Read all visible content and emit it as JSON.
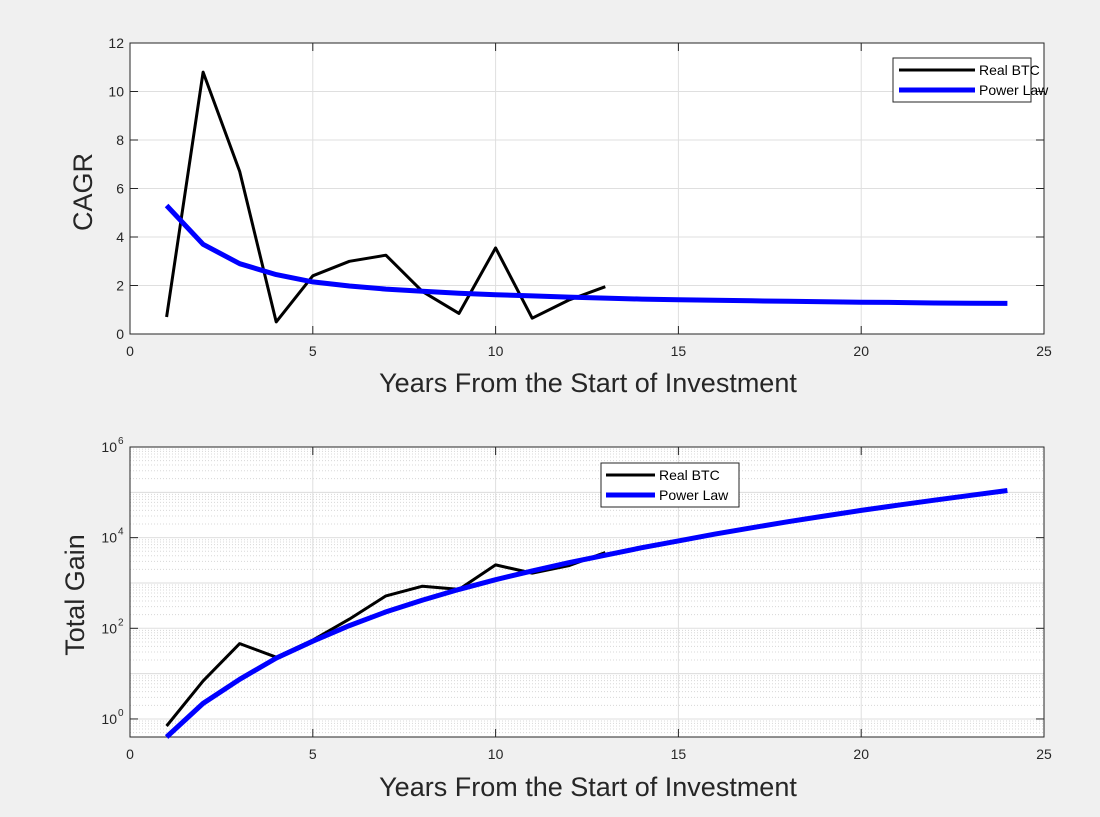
{
  "chart_data": [
    {
      "type": "line",
      "title": "",
      "xlabel": "Years From the Start of Investment",
      "ylabel": "CAGR",
      "xlim": [
        0,
        25
      ],
      "ylim": [
        0,
        12
      ],
      "xticks": [
        0,
        5,
        10,
        15,
        20,
        25
      ],
      "yticks": [
        0,
        2,
        4,
        6,
        8,
        10,
        12
      ],
      "x_tick_labels": [
        "0",
        "5",
        "10",
        "15",
        "20",
        "25"
      ],
      "y_tick_labels": [
        "0",
        "2",
        "4",
        "6",
        "8",
        "10",
        "12"
      ],
      "yscale": "linear",
      "grid": true,
      "legend": "top-right",
      "series": [
        {
          "name": "Real BTC",
          "color": "#000000",
          "x": [
            1,
            2,
            3,
            4,
            5,
            6,
            7,
            8,
            9,
            10,
            11,
            12,
            13
          ],
          "y": [
            0.7,
            10.8,
            6.7,
            0.5,
            2.4,
            3.0,
            3.25,
            1.75,
            0.85,
            3.55,
            0.65,
            1.4,
            1.95
          ]
        },
        {
          "name": "Power Law",
          "color": "#0000ff",
          "x": [
            1,
            2,
            3,
            4,
            5,
            6,
            7,
            8,
            9,
            10,
            11,
            12,
            13,
            14,
            15,
            16,
            17,
            18,
            19,
            20,
            21,
            22,
            23,
            24
          ],
          "y": [
            5.3,
            3.7,
            2.9,
            2.45,
            2.15,
            1.98,
            1.85,
            1.76,
            1.68,
            1.62,
            1.57,
            1.52,
            1.48,
            1.44,
            1.41,
            1.39,
            1.37,
            1.35,
            1.33,
            1.31,
            1.3,
            1.28,
            1.27,
            1.26
          ]
        }
      ]
    },
    {
      "type": "line",
      "title": "",
      "xlabel": "Years From the Start of Investment",
      "ylabel": "Total Gain",
      "xlim": [
        0,
        25
      ],
      "ylim": [
        0.4,
        1000000
      ],
      "xticks": [
        0,
        5,
        10,
        15,
        20,
        25
      ],
      "yticks": [
        1,
        100,
        10000,
        1000000
      ],
      "x_tick_labels": [
        "0",
        "5",
        "10",
        "15",
        "20",
        "25"
      ],
      "y_tick_labels": [
        "10",
        "10",
        "10",
        "10"
      ],
      "y_tick_exponents": [
        "0",
        "2",
        "4",
        "6"
      ],
      "yscale": "log",
      "grid": true,
      "legend": "top-center",
      "series": [
        {
          "name": "Real BTC",
          "color": "#000000",
          "x": [
            1,
            2,
            3,
            4,
            5,
            6,
            7,
            8,
            9,
            10,
            11,
            12,
            13
          ],
          "y": [
            0.7,
            6.9,
            46,
            23,
            55,
            160,
            520,
            850,
            720,
            2500,
            1650,
            2400,
            4700
          ]
        },
        {
          "name": "Power Law",
          "color": "#0000ff",
          "x": [
            1,
            2,
            3,
            4,
            5,
            6,
            7,
            8,
            9,
            10,
            11,
            12,
            13,
            14,
            15,
            16,
            17,
            18,
            19,
            20,
            21,
            22,
            23,
            24
          ],
          "y": [
            0.4,
            2.2,
            7.5,
            22,
            52,
            115,
            230,
            420,
            720,
            1180,
            1850,
            2800,
            4100,
            6000,
            8500,
            12000,
            16500,
            22500,
            30000,
            40000,
            52000,
            67000,
            86000,
            110000
          ]
        }
      ]
    }
  ]
}
